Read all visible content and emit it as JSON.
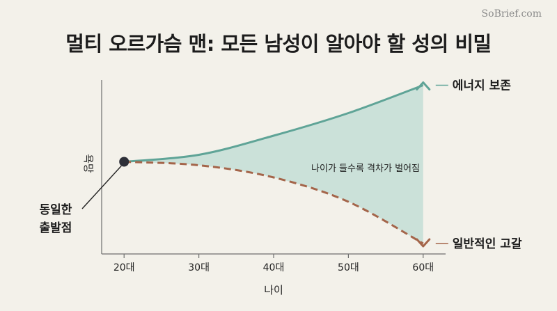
{
  "watermark": "SoBrief.com",
  "title": "멀티 오르가슴 맨: 모든 남성이 알아야 할 성의 비밀",
  "chart_data": {
    "type": "line",
    "xlabel": "나이",
    "ylabel": "욕망",
    "x": [
      20,
      30,
      40,
      50,
      60
    ],
    "xtick_labels": [
      "20대",
      "30대",
      "40대",
      "50대",
      "60대"
    ],
    "xlim": [
      17,
      63
    ],
    "ylim": [
      0,
      1
    ],
    "series": [
      {
        "name": "에너지 보존",
        "x": [
          20,
          30,
          40,
          50,
          60
        ],
        "y": [
          0.53,
          0.57,
          0.68,
          0.81,
          0.97
        ],
        "color": "#5fa497",
        "style": "solid"
      },
      {
        "name": "일반적인 고갈",
        "x": [
          20,
          30,
          40,
          50,
          60
        ],
        "y": [
          0.53,
          0.51,
          0.44,
          0.3,
          0.06
        ],
        "color": "#a4654a",
        "style": "dashed"
      }
    ],
    "start_point": {
      "x": 20,
      "y": 0.53,
      "label_lines": [
        "동일한",
        "출발점"
      ]
    },
    "gap_annotation": "나이가 들수록 격차가 벌어짐",
    "grid": false
  }
}
